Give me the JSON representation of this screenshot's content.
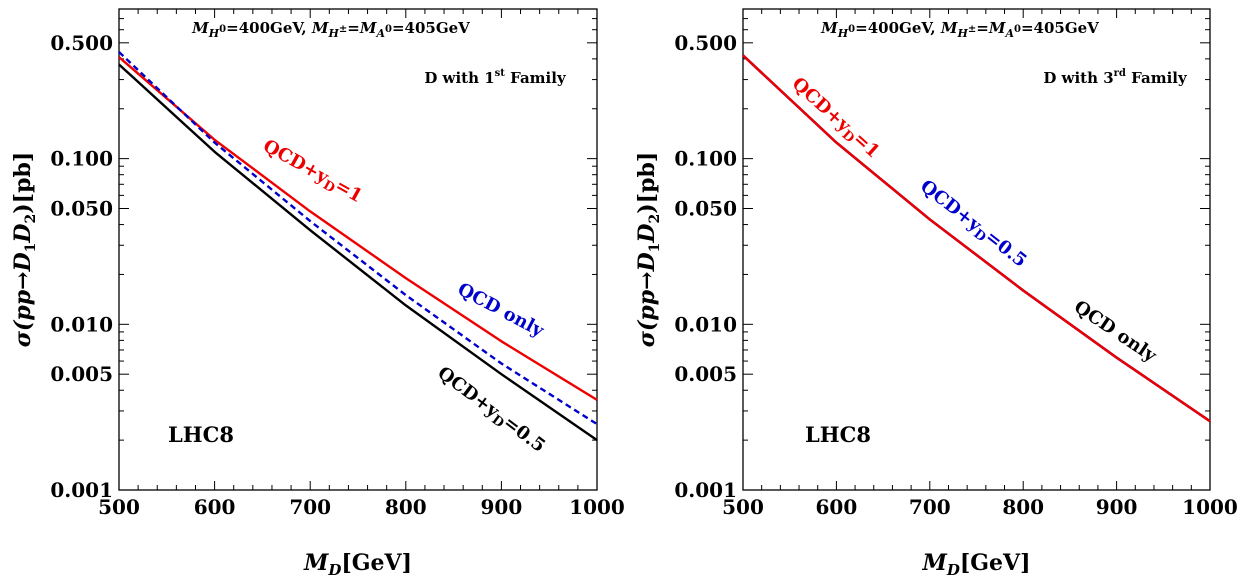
{
  "chart_data": [
    {
      "type": "line",
      "panel": "left",
      "xlabel": {
        "main": "M",
        "sub": "D",
        "rest": "[GeV]"
      },
      "ylabel": {
        "pre": "σ(pp→",
        "d1": "D",
        "s1": "1",
        "d2": "D",
        "s2": "2",
        "post": ")[pb]"
      },
      "xlim": [
        500,
        1000
      ],
      "ylim": [
        0.001,
        0.8
      ],
      "yscale": "log",
      "xticks": [
        "500",
        "600",
        "700",
        "800",
        "900",
        "1000"
      ],
      "yticks": [
        "0.001",
        "0.005",
        "0.010",
        "0.050",
        "0.100",
        "0.500"
      ],
      "annotation": {
        "m1": "M",
        "m1sub": "H",
        "m1supsub": "0",
        "m1val": "=400GeV, ",
        "m2": "M",
        "m2sub": "H",
        "m2supsub": "±",
        "eq": "=",
        "m3": "M",
        "m3sub": "A",
        "m3supsub": "0",
        "m3val": "=405GeV"
      },
      "family": {
        "pre": "D with 1",
        "sup": "st",
        "post": " Family"
      },
      "collider": "LHC8",
      "series": [
        {
          "label": {
            "pre": "QCD+y",
            "sub": "D",
            "post": "=1"
          },
          "color": "#ee0000",
          "dash": "none",
          "x": [
            500,
            600,
            700,
            800,
            900,
            1000
          ],
          "y": [
            0.41,
            0.13,
            0.048,
            0.019,
            0.0079,
            0.0035
          ]
        },
        {
          "label": {
            "pre": "QCD only",
            "sub": "",
            "post": ""
          },
          "color": "#0000cc",
          "dash": "6,4",
          "x": [
            500,
            600,
            700,
            800,
            900,
            1000
          ],
          "y": [
            0.44,
            0.125,
            0.042,
            0.015,
            0.0058,
            0.0025
          ]
        },
        {
          "label": {
            "pre": "QCD+y",
            "sub": "D",
            "post": "=0.5"
          },
          "color": "#000000",
          "dash": "none",
          "x": [
            500,
            600,
            700,
            800,
            900,
            1000
          ],
          "y": [
            0.37,
            0.11,
            0.037,
            0.013,
            0.005,
            0.002
          ]
        }
      ]
    },
    {
      "type": "line",
      "panel": "right",
      "xlabel": {
        "main": "M",
        "sub": "D",
        "rest": "[GeV]"
      },
      "ylabel": {
        "pre": "σ(pp→",
        "d1": "D",
        "s1": "1",
        "d2": "D",
        "s2": "2",
        "post": ")[pb]"
      },
      "xlim": [
        500,
        1000
      ],
      "ylim": [
        0.001,
        0.8
      ],
      "yscale": "log",
      "xticks": [
        "500",
        "600",
        "700",
        "800",
        "900",
        "1000"
      ],
      "yticks": [
        "0.001",
        "0.005",
        "0.010",
        "0.050",
        "0.100",
        "0.500"
      ],
      "annotation": {
        "m1": "M",
        "m1sub": "H",
        "m1supsub": "0",
        "m1val": "=400GeV, ",
        "m2": "M",
        "m2sub": "H",
        "m2supsub": "±",
        "eq": "=",
        "m3": "M",
        "m3sub": "A",
        "m3supsub": "0",
        "m3val": "=405GeV"
      },
      "family": {
        "pre": "D with 3",
        "sup": "rd",
        "post": " Family"
      },
      "collider": "LHC8",
      "series": [
        {
          "label": {
            "pre": "QCD only",
            "sub": "",
            "post": ""
          },
          "color": "#000000",
          "dash": "none",
          "x": [
            500,
            600,
            700,
            800,
            900,
            1000
          ],
          "y": [
            0.42,
            0.125,
            0.043,
            0.016,
            0.0063,
            0.0026
          ]
        },
        {
          "label": {
            "pre": "QCD+y",
            "sub": "D",
            "post": "=0.5"
          },
          "color": "#0000cc",
          "dash": "none",
          "x": [
            500,
            600,
            700,
            800,
            900,
            1000
          ],
          "y": [
            0.42,
            0.125,
            0.043,
            0.016,
            0.0063,
            0.0026
          ]
        },
        {
          "label": {
            "pre": "QCD+y",
            "sub": "D",
            "post": "=1"
          },
          "color": "#ee0000",
          "dash": "none",
          "x": [
            500,
            600,
            700,
            800,
            900,
            1000
          ],
          "y": [
            0.42,
            0.125,
            0.043,
            0.016,
            0.0063,
            0.0026
          ]
        }
      ]
    }
  ]
}
